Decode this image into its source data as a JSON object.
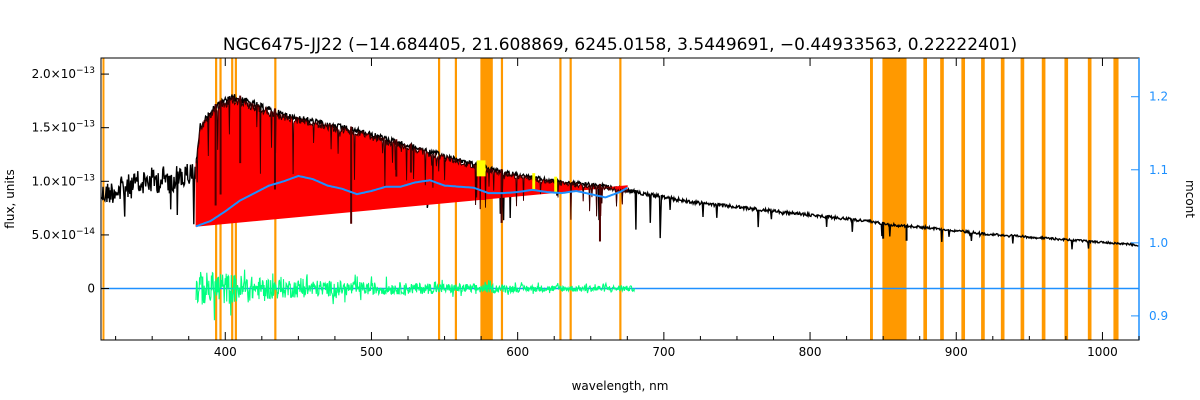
{
  "chart_data": {
    "type": "line",
    "title": "NGC6475-JJ22   (−14.684405, 21.608869, 6245.0158, 3.5449691, −0.44933563, 0.22222401)",
    "xlabel": "wavelength, nm",
    "ylabel": "flux, units",
    "ylabel_right": "mcont",
    "xlim": [
      315,
      1025
    ],
    "ylim": [
      -4.8e-14,
      2.15e-13
    ],
    "ylim_right": [
      0.867,
      1.253
    ],
    "x_ticks": [
      400,
      500,
      600,
      700,
      800,
      900,
      1000
    ],
    "x_tick_labels": [
      "400",
      "500",
      "600",
      "700",
      "800",
      "900",
      "1000"
    ],
    "y_ticks": [
      0,
      5e-14,
      1e-13,
      1.5e-13,
      2e-13
    ],
    "y_tick_labels": [
      {
        "mantissa": "0",
        "exp": ""
      },
      {
        "mantissa": "5.0×10",
        "exp": "−14"
      },
      {
        "mantissa": "1.0×10",
        "exp": "−13"
      },
      {
        "mantissa": "1.5×10",
        "exp": "−13"
      },
      {
        "mantissa": "2.0×10",
        "exp": "−13"
      }
    ],
    "y_ticks_right": [
      0.9,
      1.0,
      1.1,
      1.2
    ],
    "y_tick_labels_right": [
      "0.9",
      "1.0",
      "1.1",
      "1.2"
    ],
    "grid": false,
    "colors": {
      "observed": "#000000",
      "model": "#ff0000",
      "residual": "#00ff7f",
      "continuum": "#1e90ff",
      "masked": "#ff9900",
      "highlight": "#ffff00",
      "right_axis": "#1e90ff"
    },
    "masked_regions": [
      [
        316,
        317
      ],
      [
        393.0,
        394.5
      ],
      [
        396.0,
        397.5
      ],
      [
        404.0,
        405.5
      ],
      [
        406.5,
        408.0
      ],
      [
        433.5,
        435.0
      ],
      [
        545.5,
        547.0
      ],
      [
        557.0,
        558.5
      ],
      [
        574.5,
        583.0
      ],
      [
        588.5,
        590.0
      ],
      [
        628.5,
        630.0
      ],
      [
        635.5,
        637.0
      ],
      [
        669.5,
        671.0
      ],
      [
        841.0,
        843.0
      ],
      [
        849.5,
        866.0
      ],
      [
        877.5,
        880.0
      ],
      [
        889.0,
        891.5
      ],
      [
        903.5,
        906.0
      ],
      [
        917.0,
        919.5
      ],
      [
        930.5,
        933.0
      ],
      [
        944.0,
        946.5
      ],
      [
        958.5,
        961.0
      ],
      [
        974.0,
        976.5
      ],
      [
        990.0,
        992.5
      ],
      [
        1007.5,
        1011.0
      ]
    ],
    "series": [
      {
        "role": "observed",
        "x": [
          315,
          330,
          345,
          360,
          375,
          380,
          383,
          390,
          395,
          400,
          405,
          410,
          420,
          430,
          440,
          450,
          460,
          470,
          480,
          490,
          500,
          520,
          540,
          560,
          580,
          600,
          620,
          640,
          660,
          680,
          700,
          720,
          740,
          760,
          780,
          800,
          820,
          840,
          850,
          860,
          880,
          900,
          920,
          940,
          960,
          980,
          1000,
          1020,
          1025
        ],
        "values": [
          9.8e-14,
          1.05e-13,
          1.12e-13,
          1.15e-13,
          1.18e-13,
          1.2e-13,
          1.55e-13,
          1.68e-13,
          1.74e-13,
          1.78e-13,
          1.82e-13,
          1.8e-13,
          1.75e-13,
          1.7e-13,
          1.65e-13,
          1.62e-13,
          1.59e-13,
          1.56e-13,
          1.53e-13,
          1.5e-13,
          1.46e-13,
          1.38e-13,
          1.3e-13,
          1.22e-13,
          1.14e-13,
          1.08e-13,
          1.03e-13,
          1e-13,
          9.7e-14,
          9.2e-14,
          8.7e-14,
          8.2e-14,
          7.9e-14,
          7.6e-14,
          7.3e-14,
          7e-14,
          6.7e-14,
          6.4e-14,
          6.2e-14,
          6e-14,
          5.8e-14,
          5.5e-14,
          5.2e-14,
          5e-14,
          4.8e-14,
          4.6e-14,
          4.4e-14,
          4.2e-14,
          4.1e-14
        ]
      },
      {
        "role": "model",
        "x": [
          380,
          383,
          390,
          395,
          400,
          405,
          410,
          420,
          430,
          440,
          450,
          460,
          470,
          480,
          490,
          500,
          520,
          540,
          560,
          580,
          600,
          620,
          640,
          660,
          675
        ],
        "values": [
          1.2e-13,
          1.55e-13,
          1.68e-13,
          1.74e-13,
          1.78e-13,
          1.82e-13,
          1.8e-13,
          1.75e-13,
          1.7e-13,
          1.65e-13,
          1.62e-13,
          1.59e-13,
          1.56e-13,
          1.53e-13,
          1.5e-13,
          1.46e-13,
          1.38e-13,
          1.3e-13,
          1.22e-13,
          1.14e-13,
          1.08e-13,
          1.03e-13,
          1e-13,
          9.7e-14,
          9.4e-14
        ]
      },
      {
        "role": "continuum",
        "x": [
          380,
          390,
          400,
          410,
          420,
          430,
          440,
          450,
          460,
          470,
          480,
          490,
          500,
          510,
          520,
          530,
          540,
          550,
          560,
          570,
          580,
          590,
          600,
          610,
          620,
          630,
          640,
          650,
          660,
          670,
          675
        ],
        "values": [
          5.8e-14,
          6.3e-14,
          7.2e-14,
          8.2e-14,
          8.9e-14,
          9.6e-14,
          1e-13,
          1.05e-13,
          1.02e-13,
          9.6e-14,
          9.3e-14,
          8.8e-14,
          9.1e-14,
          9.5e-14,
          9.5e-14,
          9.9e-14,
          1.01e-13,
          9.6e-14,
          9.5e-14,
          9.4e-14,
          8.9e-14,
          8.9e-14,
          9e-14,
          9.2e-14,
          9e-14,
          8.9e-14,
          9.1e-14,
          8.8e-14,
          8.5e-14,
          9e-14,
          9.4e-14
        ]
      },
      {
        "role": "residual",
        "x": [
          380,
          400,
          420,
          440,
          460,
          480,
          500,
          520,
          540,
          560,
          580,
          600,
          620,
          640,
          660,
          680
        ],
        "amplitude": [
          1.6e-14,
          1.5e-14,
          1.1e-14,
          9e-15,
          8e-15,
          7e-15,
          6e-15,
          5.5e-15,
          5e-15,
          4.5e-15,
          4e-15,
          3.5e-15,
          3e-15,
          3e-15,
          3e-15,
          2.5e-15
        ]
      }
    ]
  }
}
